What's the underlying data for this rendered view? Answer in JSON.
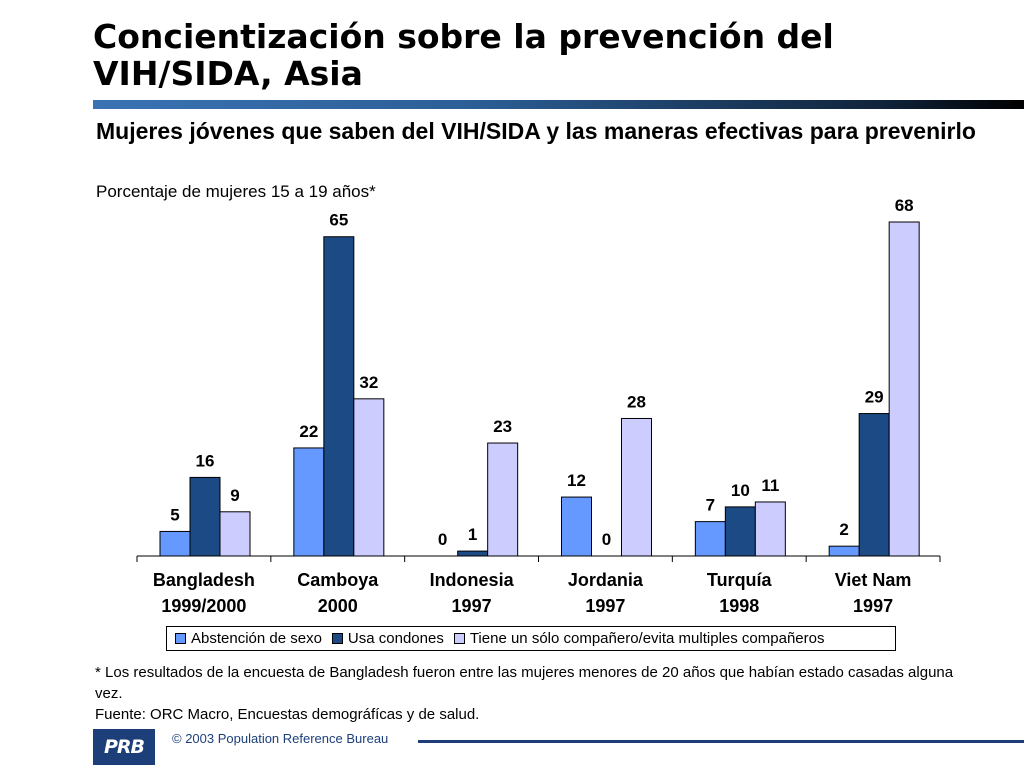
{
  "title": "Concientización sobre la prevención del VIH/SIDA, Asia",
  "subtitle": "Mujeres jóvenes que saben del VIH/SIDA y las maneras efectivas para prevenirlo",
  "units_label": "Porcentaje de mujeres 15 a 19 años*",
  "chart_data": {
    "type": "bar",
    "categories": [
      [
        "Bangladesh",
        "1999/2000"
      ],
      [
        "Camboya",
        "2000"
      ],
      [
        "Indonesia",
        "1997"
      ],
      [
        "Jordania",
        "1997"
      ],
      [
        "Turquía",
        "1998"
      ],
      [
        "Viet Nam",
        "1997"
      ]
    ],
    "series": [
      {
        "name": "Abstención de sexo",
        "color": "#6699ff",
        "values": [
          5,
          22,
          0,
          12,
          7,
          2
        ]
      },
      {
        "name": "Usa condones",
        "color": "#1c4a84",
        "values": [
          16,
          65,
          1,
          0,
          10,
          29
        ]
      },
      {
        "name": "Tiene un sólo compañero/evita multiples compañeros",
        "color": "#ccccff",
        "values": [
          9,
          32,
          23,
          28,
          11,
          68
        ]
      }
    ],
    "ylim": [
      0,
      68
    ],
    "grid": false,
    "legend_position": "bottom"
  },
  "footnote": [
    "* Los resultados de la encuesta de Bangladesh fueron entre las mujeres menores de 20 años que habían estado casadas alguna vez.",
    "Fuente: ORC Macro, Encuestas demográfícas y de salud."
  ],
  "footer": {
    "logo_text": "PRB",
    "copyright": "© 2003 Population Reference Bureau"
  }
}
